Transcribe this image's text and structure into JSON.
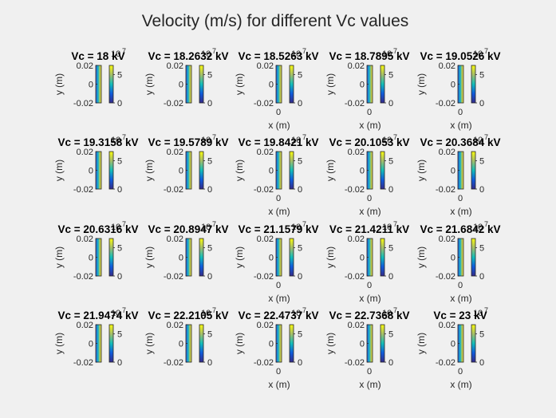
{
  "figure": {
    "title": "Velocity (m/s) for different Vc values",
    "xlabel": "x (m)",
    "ylabel": "y (m)",
    "colorbar_exponent": "7",
    "colorbar_exponent_base": "10"
  },
  "chart_data": {
    "type": "heatmap",
    "title": "Velocity (m/s) for different Vc values",
    "quantity": "Velocity (m/s)",
    "layout": "4x5",
    "xlabel": "x (m)",
    "ylabel": "y (m)",
    "y_ticks": [
      -0.02,
      0,
      0.02
    ],
    "x_ticks": [
      0
    ],
    "colorbar_ticks": [
      0,
      5
    ],
    "colorbar_scale": "×10^7",
    "colormap": "parula",
    "colors": {
      "low": "#352a87",
      "mid": "#12beb9",
      "high": "#f9fb0e"
    },
    "subplots": [
      "Vc = 18 kV",
      "Vc = 18.2632 kV",
      "Vc = 18.5263 kV",
      "Vc = 18.7895 kV",
      "Vc = 19.0526 kV",
      "Vc = 19.3158 kV",
      "Vc = 19.5789 kV",
      "Vc = 19.8421 kV",
      "Vc = 20.1053 kV",
      "Vc = 20.3684 kV",
      "Vc = 20.6316 kV",
      "Vc = 20.8947 kV",
      "Vc = 21.1579 kV",
      "Vc = 21.4211 kV",
      "Vc = 21.6842 kV",
      "Vc = 21.9474 kV",
      "Vc = 22.2105 kV",
      "Vc = 22.4737 kV",
      "Vc = 22.7368 kV",
      "Vc = 23 kV"
    ]
  }
}
